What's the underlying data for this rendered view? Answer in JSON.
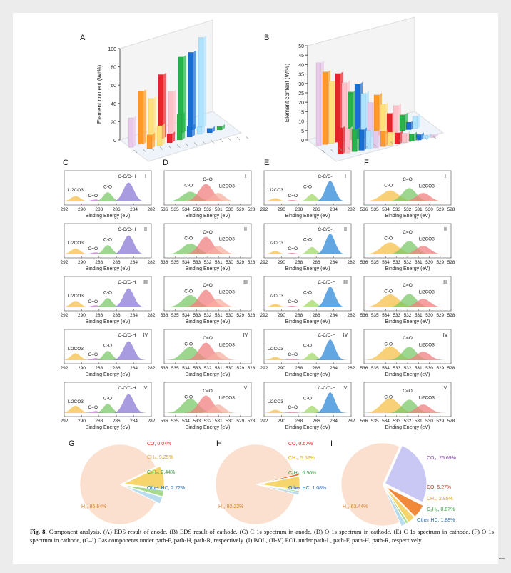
{
  "labels": {
    "A": "A",
    "B": "B",
    "C": "C",
    "D": "D",
    "E": "E",
    "F": "F",
    "G": "G",
    "H": "H",
    "I": "I"
  },
  "panelA": {
    "ylabel": "Element content (Wt%)",
    "yticks": [
      "0",
      "20",
      "40",
      "60",
      "80",
      "100"
    ]
  },
  "panelB": {
    "ylabel": "Element content (Wt%)",
    "yticks": [
      "0",
      "5",
      "10",
      "15",
      "20",
      "25",
      "30",
      "35",
      "40",
      "45",
      "50"
    ]
  },
  "spectra": {
    "xlabel": "Binding Energy (eV)",
    "c1s_ticks": [
      "292",
      "290",
      "288",
      "286",
      "284",
      "282"
    ],
    "o1s_ticks": [
      "536",
      "535",
      "534",
      "533",
      "532",
      "531",
      "530",
      "529",
      "528"
    ],
    "stages": [
      "I",
      "II",
      "III",
      "IV",
      "V"
    ],
    "peaks": {
      "li2co3": "Li2CO3",
      "co": "C=O",
      "c_o": "C-O",
      "cc": "C-C/C-H"
    }
  },
  "pies": [
    {
      "id": "G",
      "slices": [
        {
          "label": "H₂, 85.54%",
          "value": 85.54,
          "color": "#fbe0d0",
          "text": "#d9822b"
        },
        {
          "label": "CO, 0.04%",
          "value": 0.04,
          "color": "#e23b2e",
          "text": "#d42a1e"
        },
        {
          "label": "CH₄, 9.25%",
          "value": 9.25,
          "color": "#f6d56c",
          "text": "#d9a400"
        },
        {
          "label": "C₂H₆, 2.44%",
          "value": 2.44,
          "color": "#a9d98c",
          "text": "#2f9a3a"
        },
        {
          "label": "Other HC, 2.72%",
          "value": 2.72,
          "color": "#b9dcee",
          "text": "#2a6fb5"
        }
      ]
    },
    {
      "id": "H",
      "slices": [
        {
          "label": "H₂, 92.22%",
          "value": 92.22,
          "color": "#fbe0d0",
          "text": "#d9822b"
        },
        {
          "label": "CO, 0.67%",
          "value": 0.67,
          "color": "#e8692a",
          "text": "#d42a1e"
        },
        {
          "label": "CH₄, 5.52%",
          "value": 5.52,
          "color": "#f6d56c",
          "text": "#d9a400"
        },
        {
          "label": "C₂H₆, 0.50%",
          "value": 0.5,
          "color": "#a9d98c",
          "text": "#2f9a3a"
        },
        {
          "label": "Other HC, 1.08%",
          "value": 1.08,
          "color": "#b9dcee",
          "text": "#2a6fb5"
        }
      ]
    },
    {
      "id": "I",
      "slices": [
        {
          "label": "H₂, 63.44%",
          "value": 63.44,
          "color": "#fbe0d0",
          "text": "#d9822b"
        },
        {
          "label": "CO₂, 25.69%",
          "value": 25.69,
          "color": "#c9c8f4",
          "text": "#7a3aa8"
        },
        {
          "label": "CO, 5.27%",
          "value": 5.27,
          "color": "#f08a3a",
          "text": "#d42a1e"
        },
        {
          "label": "CH₄, 2.85%",
          "value": 2.85,
          "color": "#f6d56c",
          "text": "#d9a400"
        },
        {
          "label": "C₂H₆, 0.87%",
          "value": 0.87,
          "color": "#a9d98c",
          "text": "#2f9a3a"
        },
        {
          "label": "Other HC, 1.88%",
          "value": 1.88,
          "color": "#b9dcee",
          "text": "#2a6fb5"
        }
      ]
    }
  ],
  "caption": {
    "fig": "Fig. 8.",
    "text": " Component analysis. (A) EDS result of anode, (B) EDS result of cathode, (C) C 1s spectrum in anode, (D) O 1s spectrum in cathode, (E) C 1s spectrum in cathode, (F) O 1s spectrum in cathode, (G–I) Gas components under path-F, path-H, path-R, respectively. (I) BOL, (II-V) EOL under path-L, path-F, path-H, path-R, respectively."
  },
  "nav": {
    "back": "←"
  }
}
